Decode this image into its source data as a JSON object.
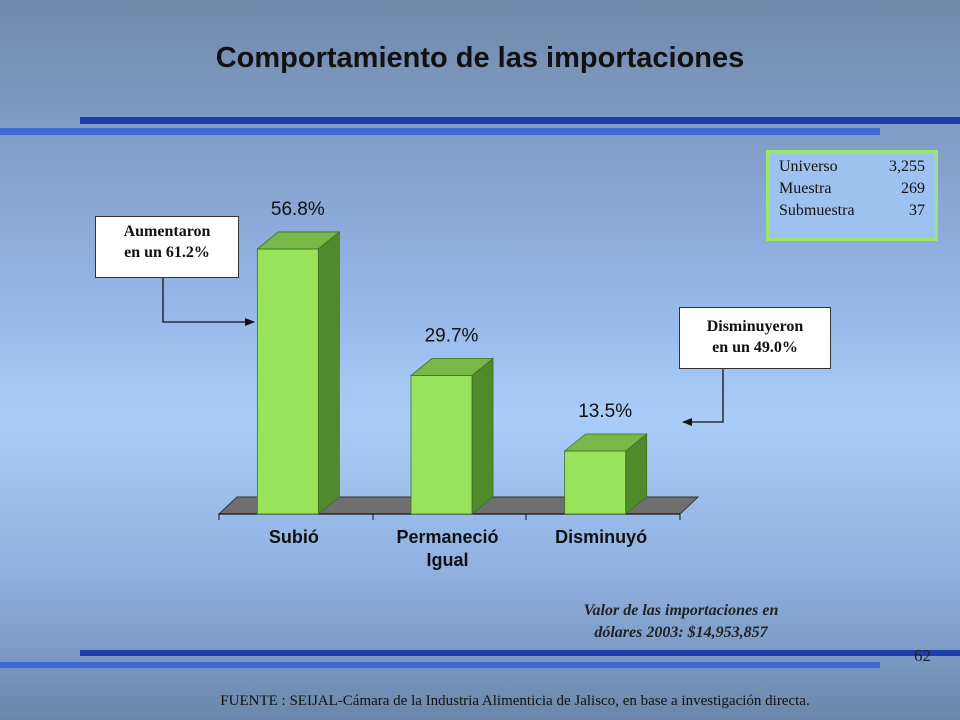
{
  "title": "Comportamiento de las importaciones",
  "callout_up": {
    "line1": "Aumentaron",
    "line2": "en un 61.2%"
  },
  "callout_down": {
    "line1": "Disminuyeron",
    "line2": "en un 49.0%"
  },
  "universe_box": {
    "rows": [
      {
        "label": "Universo",
        "value": "3,255"
      },
      {
        "label": "Muestra",
        "value": "269"
      },
      {
        "label": "Submuestra",
        "value": "37"
      }
    ]
  },
  "chart_data": {
    "type": "bar",
    "categories": [
      "Subió",
      "Permaneció Igual",
      "Disminuyó"
    ],
    "category_lines": [
      [
        "Subió"
      ],
      [
        "Permaneció",
        "Igual"
      ],
      [
        "Disminuyó"
      ]
    ],
    "values": [
      56.8,
      29.7,
      13.5
    ],
    "value_labels": [
      "56.8%",
      "29.7%",
      "13.5%"
    ],
    "unit": "%",
    "ylim": [
      0,
      60
    ],
    "grid": false,
    "bar_color": "#99e35c",
    "bar_side_color": "#4f8a2c",
    "bar_top_color": "#78b848"
  },
  "valor": {
    "line1": "Valor de las importaciones en",
    "line2": "dólares 2003: $14,953,857"
  },
  "page_number": "62",
  "source": "FUENTE : SEIJAL-Cámara de la Industria Alimenticia de Jalisco,  en base a investigación directa."
}
